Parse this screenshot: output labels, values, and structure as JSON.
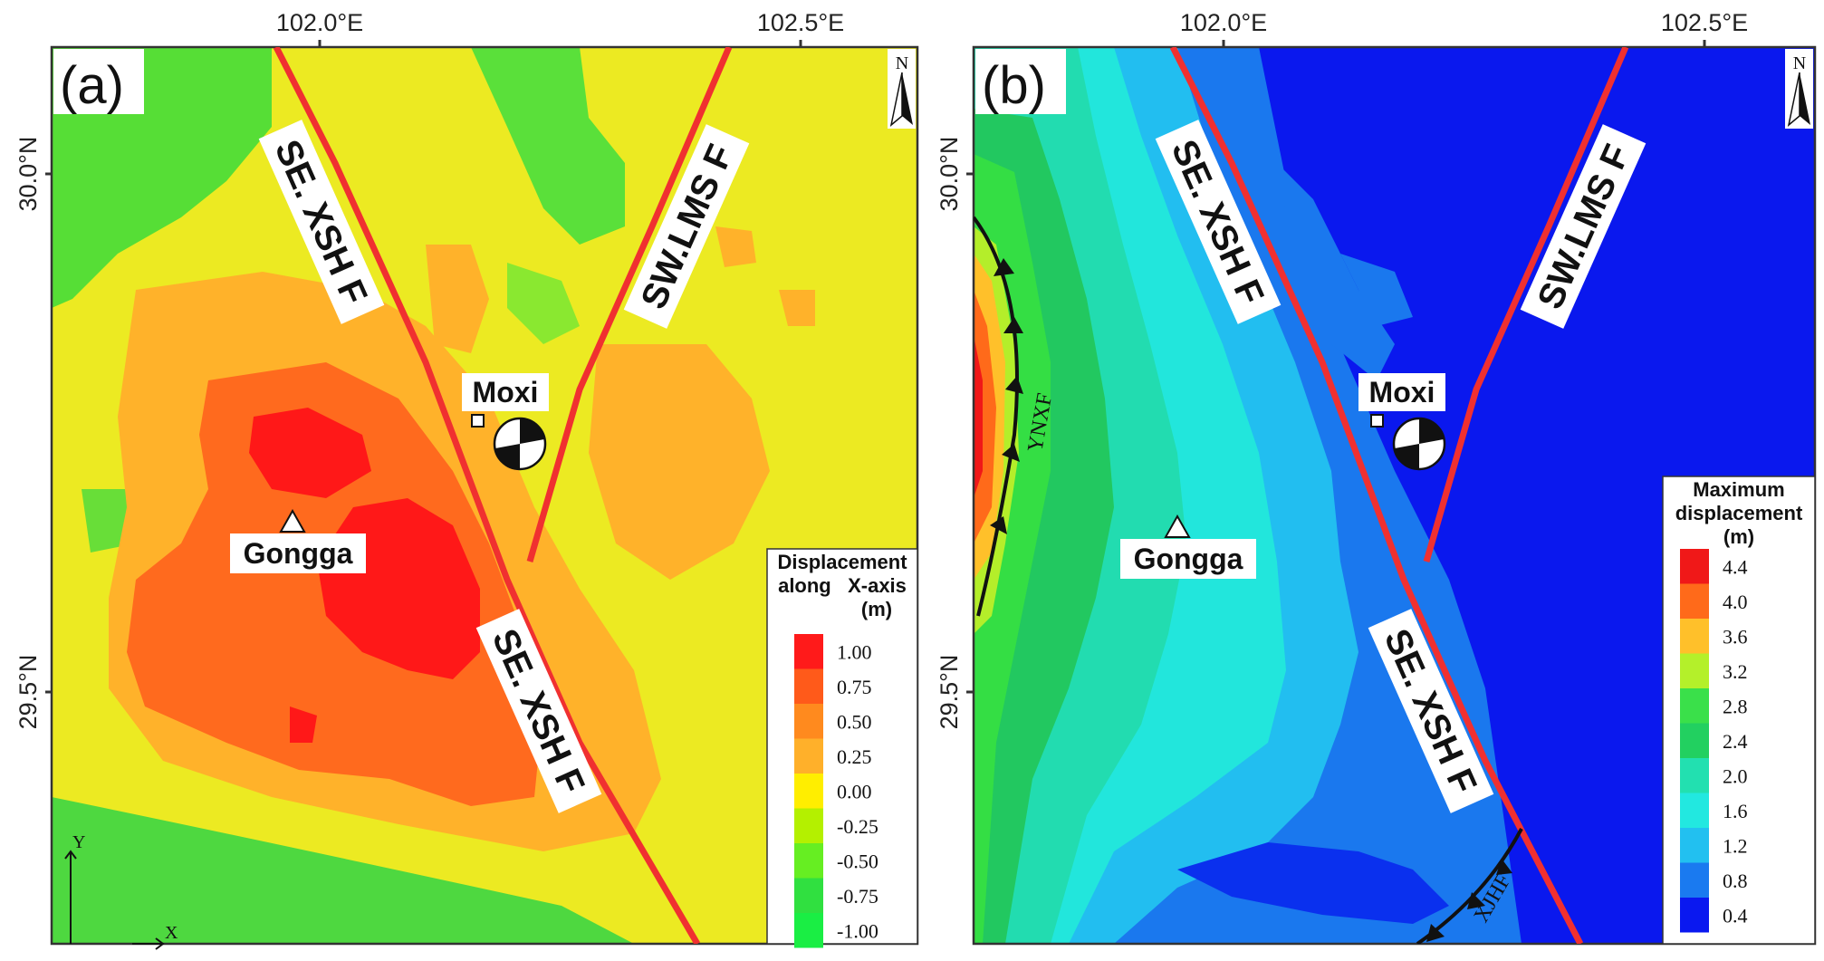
{
  "longitude_ticks": [
    "102.0°E",
    "102.5°E"
  ],
  "latitude_ticks": [
    "30.0°N",
    "29.5°N"
  ],
  "panel_a": {
    "label": "(a)",
    "north": "N",
    "faults": [
      "SE. XSH F",
      "SW.LMS F",
      "SE. XSH F"
    ],
    "places": {
      "moxi": "Moxi",
      "gongga": "Gongga"
    },
    "axes": {
      "y": "Y",
      "x": "X"
    },
    "legend": {
      "title": [
        "Displacement",
        "along   X-axis",
        "(m)"
      ],
      "items": [
        {
          "value": "1.00",
          "color": "#ff1a1a"
        },
        {
          "value": "0.75",
          "color": "#ff5a1a"
        },
        {
          "value": "0.50",
          "color": "#ff8a1e"
        },
        {
          "value": "0.25",
          "color": "#ffb02a"
        },
        {
          "value": "0.00",
          "color": "#ffee00"
        },
        {
          "value": "-0.25",
          "color": "#b4f000"
        },
        {
          "value": "-0.50",
          "color": "#66ee22"
        },
        {
          "value": "-0.75",
          "color": "#30e040"
        },
        {
          "value": "-1.00",
          "color": "#1aee44"
        }
      ]
    }
  },
  "panel_b": {
    "label": "(b)",
    "north": "N",
    "faults": [
      "SE. XSH F",
      "SW.LMS F",
      "SE. XSH F"
    ],
    "faults_other": [
      "YNXF",
      "XJHF"
    ],
    "places": {
      "moxi": "Moxi",
      "gongga": "Gongga"
    },
    "legend": {
      "title": [
        "Maximum",
        "displacement",
        "(m)"
      ],
      "items": [
        {
          "value": "4.4",
          "color": "#f01818"
        },
        {
          "value": "4.0",
          "color": "#ff6a1a"
        },
        {
          "value": "3.6",
          "color": "#ffc02a"
        },
        {
          "value": "3.2",
          "color": "#b4f02a"
        },
        {
          "value": "2.8",
          "color": "#3ae04a"
        },
        {
          "value": "2.4",
          "color": "#22d060"
        },
        {
          "value": "2.0",
          "color": "#22e0b0"
        },
        {
          "value": "1.6",
          "color": "#22e8e0"
        },
        {
          "value": "1.2",
          "color": "#22c0f0"
        },
        {
          "value": "0.8",
          "color": "#1a7af0"
        },
        {
          "value": "0.4",
          "color": "#0a18f0"
        }
      ]
    }
  }
}
